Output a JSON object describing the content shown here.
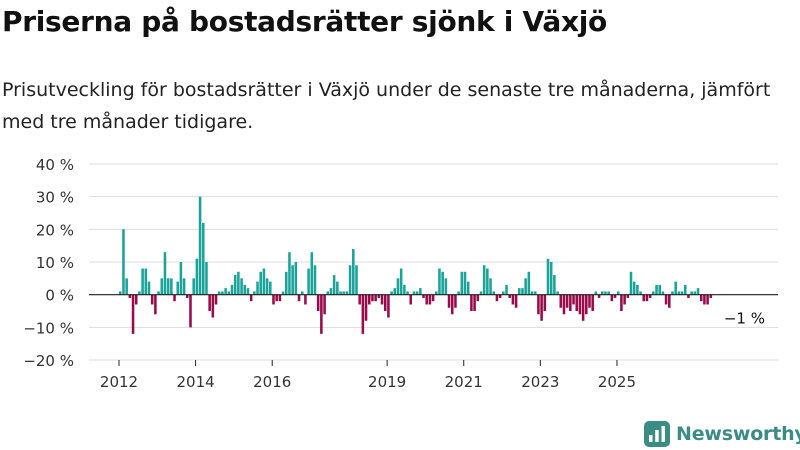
{
  "title": "Priserna på bostadsrätter sjönk i Växjö",
  "subtitle": "Prisutveckling för bostadsrätter i Växjö under de senaste tre månaderna, jämfört med tre månader tidigare.",
  "brand": {
    "name": "Newsworthy",
    "color": "#3c8c86",
    "icon": "newsworthy-chart-logo-icon"
  },
  "colors": {
    "positive": "#1aa399",
    "negative": "#990a4b",
    "grid": "#dddddd",
    "axis": "#222222"
  },
  "chart_data": {
    "type": "bar",
    "title": "Priserna på bostadsrätter sjönk i Växjö",
    "ylabel": "",
    "xlabel": "",
    "ylim": [
      -20,
      40
    ],
    "yticks": [
      -20,
      -10,
      0,
      10,
      20,
      30,
      40
    ],
    "ytick_labels": [
      "−20 %",
      "−10 %",
      "0 %",
      "10 %",
      "20 %",
      "30 %",
      "40 %"
    ],
    "xticks": [
      "2012",
      "2014",
      "2016",
      "2019",
      "2021",
      "2023",
      "2025"
    ],
    "grid": true,
    "legend": "none",
    "annotation": "−1 %",
    "start_year": 2012,
    "months_per_bar": 1,
    "values": [
      1,
      20,
      5,
      -1,
      -12,
      -3,
      1,
      8,
      8,
      4,
      -3,
      -6,
      1,
      5,
      13,
      5,
      5,
      -2,
      4,
      10,
      5,
      -1,
      -10,
      5,
      11,
      30,
      22,
      10,
      -5,
      -7,
      -3,
      1,
      1,
      2,
      1,
      3,
      6,
      7,
      5,
      3,
      2,
      -2,
      1,
      4,
      7,
      8,
      5,
      4,
      -3,
      -2,
      -2,
      1,
      7,
      13,
      9,
      10,
      -2,
      1,
      -3,
      8,
      13,
      9,
      -5,
      -12,
      -6,
      1,
      2,
      6,
      4,
      1,
      1,
      1,
      9,
      14,
      9,
      -3,
      -12,
      -8,
      -3,
      -2,
      -2,
      -1,
      -3,
      -5,
      -7,
      1,
      2,
      5,
      8,
      3,
      1,
      -3,
      1,
      1,
      2,
      -1,
      -3,
      -3,
      -2,
      1,
      8,
      7,
      5,
      -4,
      -6,
      -4,
      1,
      7,
      7,
      4,
      -5,
      -5,
      -2,
      1,
      9,
      8,
      5,
      1,
      -2,
      -1,
      1,
      3,
      -1,
      -3,
      -4,
      2,
      2,
      5,
      7,
      1,
      1,
      -6,
      -8,
      -5,
      11,
      10,
      6,
      1,
      -4,
      -6,
      -4,
      -5,
      -3,
      -5,
      -6,
      -8,
      -6,
      -4,
      -5,
      1,
      -1,
      1,
      1,
      1,
      -2,
      -1,
      1,
      -5,
      -3,
      -1,
      7,
      4,
      3,
      1,
      -2,
      -2,
      -1,
      1,
      3,
      3,
      1,
      -3,
      -4,
      1,
      4,
      1,
      1,
      3,
      -1,
      1,
      1,
      2,
      -2,
      -3,
      -3,
      -1
    ]
  }
}
